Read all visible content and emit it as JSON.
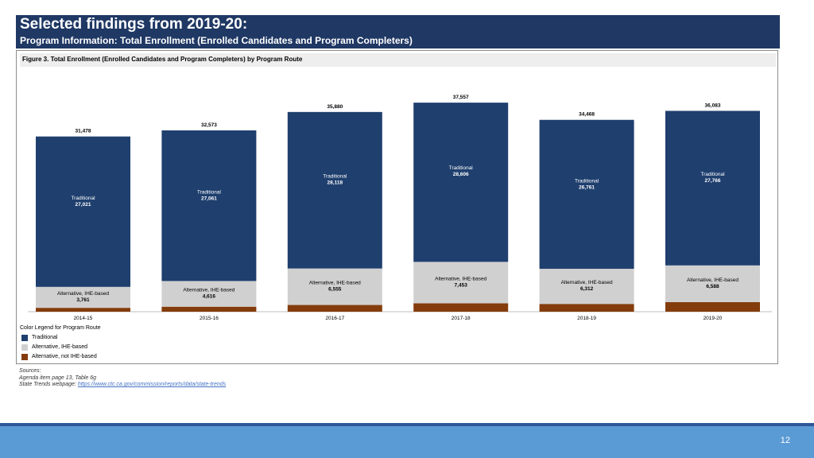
{
  "header": {
    "title": "Selected findings from 2019-20:",
    "subtitle": "Program Information: Total Enrollment (Enrolled Candidates and Program Completers)"
  },
  "chart_data": {
    "type": "bar",
    "stacked": true,
    "title": "Figure 3. Total Enrollment (Enrolled Candidates and Program Completers) by Program Route",
    "categories": [
      "2014-15",
      "2015-16",
      "2016-17",
      "2017-18",
      "2018-19",
      "2019-20"
    ],
    "totals": [
      "31,478",
      "32,573",
      "35,880",
      "37,557",
      "34,468",
      "36,083"
    ],
    "series": [
      {
        "name": "Alternative, not IHE-based",
        "color": "#843c0c",
        "values": [
          696,
          896,
          1207,
          1498,
          1395,
          1729
        ]
      },
      {
        "name": "Alternative, IHE-based",
        "color": "#d0d0d0",
        "label": "Alternative, IHE-based",
        "values": [
          3761,
          4616,
          6555,
          7453,
          6312,
          6588
        ],
        "value_labels": [
          "3,761",
          "4,616",
          "6,555",
          "7,453",
          "6,312",
          "6,588"
        ]
      },
      {
        "name": "Traditional",
        "color": "#1f3f6e",
        "label": "Traditional",
        "values": [
          27021,
          27061,
          28118,
          28606,
          26761,
          27766
        ],
        "value_labels": [
          "27,021",
          "27,061",
          "28,118",
          "28,606",
          "26,761",
          "27,766"
        ]
      }
    ],
    "legend": {
      "title": "Color Legend for Program Route",
      "items": [
        "Traditional",
        "Alternative, IHE-based",
        "Alternative, not IHE-based"
      ],
      "position": "bottom-left"
    },
    "ylim": [
      0,
      40000
    ],
    "grid": false
  },
  "sources": {
    "label": "Sources:",
    "line1": "Agenda item page 13, Table 6g",
    "line2_prefix": "State Trends webpage: ",
    "link_text": "https://www.ctc.ca.gov/commission/reports/data/state-trends"
  },
  "footer": {
    "page_number": "12"
  }
}
